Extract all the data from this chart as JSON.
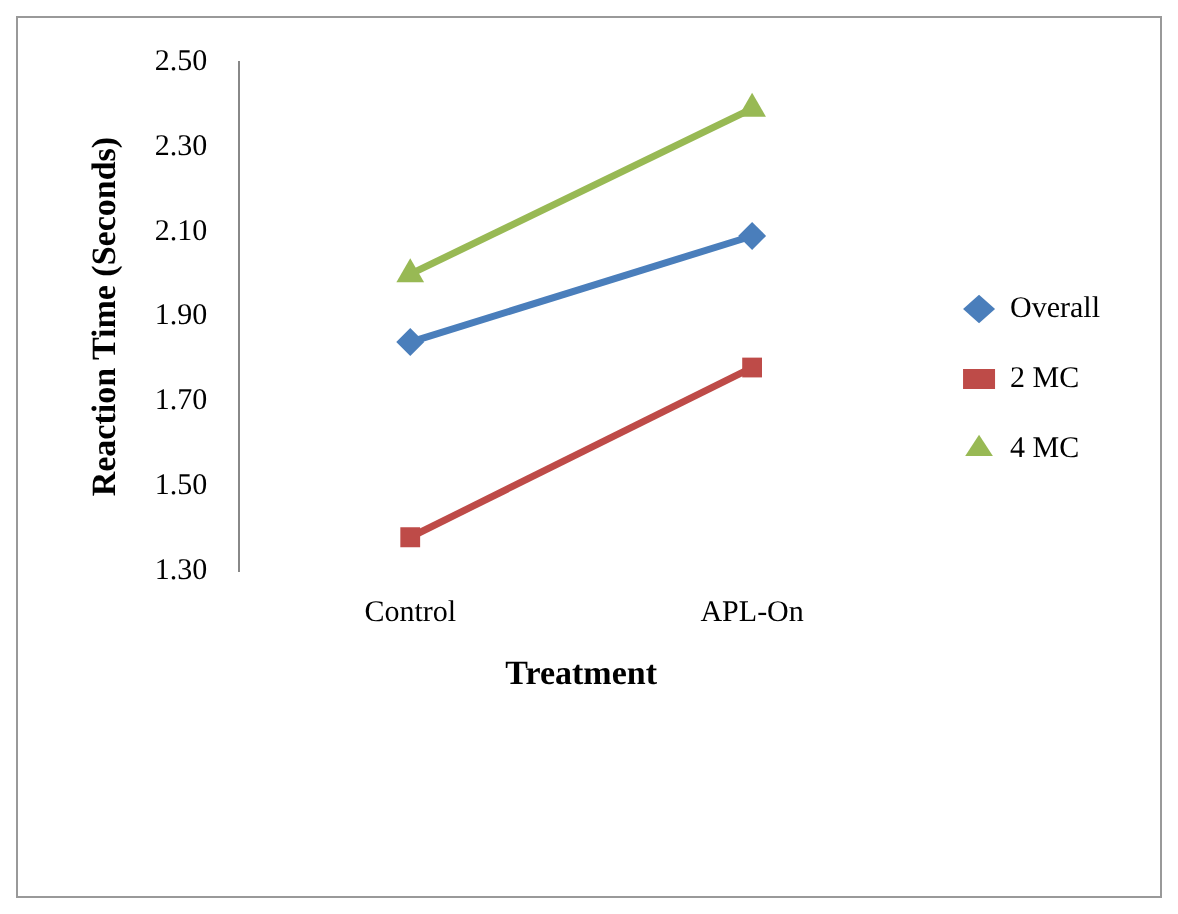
{
  "chart_data": {
    "type": "line",
    "xlabel": "Treatment",
    "ylabel": "Reaction Time (Seconds)",
    "categories": [
      "Control",
      "APL-On"
    ],
    "series": [
      {
        "name": "Overall",
        "color": "#4a7ebb",
        "marker": "diamond",
        "values": [
          1.84,
          2.09
        ]
      },
      {
        "name": "2 MC",
        "color": "#be4b48",
        "marker": "square",
        "values": [
          1.38,
          1.78
        ]
      },
      {
        "name": "4 MC",
        "color": "#98b954",
        "marker": "triangle",
        "values": [
          2.0,
          2.39
        ]
      }
    ],
    "ylim": [
      1.3,
      2.5
    ],
    "yticks": [
      {
        "value": 1.3,
        "label": "1.30"
      },
      {
        "value": 1.5,
        "label": "1.50"
      },
      {
        "value": 1.7,
        "label": "1.70"
      },
      {
        "value": 1.9,
        "label": "1.90"
      },
      {
        "value": 2.1,
        "label": "2.10"
      },
      {
        "value": 2.3,
        "label": "2.30"
      },
      {
        "value": 2.5,
        "label": "2.50"
      }
    ],
    "grid": false,
    "legend": "right"
  }
}
